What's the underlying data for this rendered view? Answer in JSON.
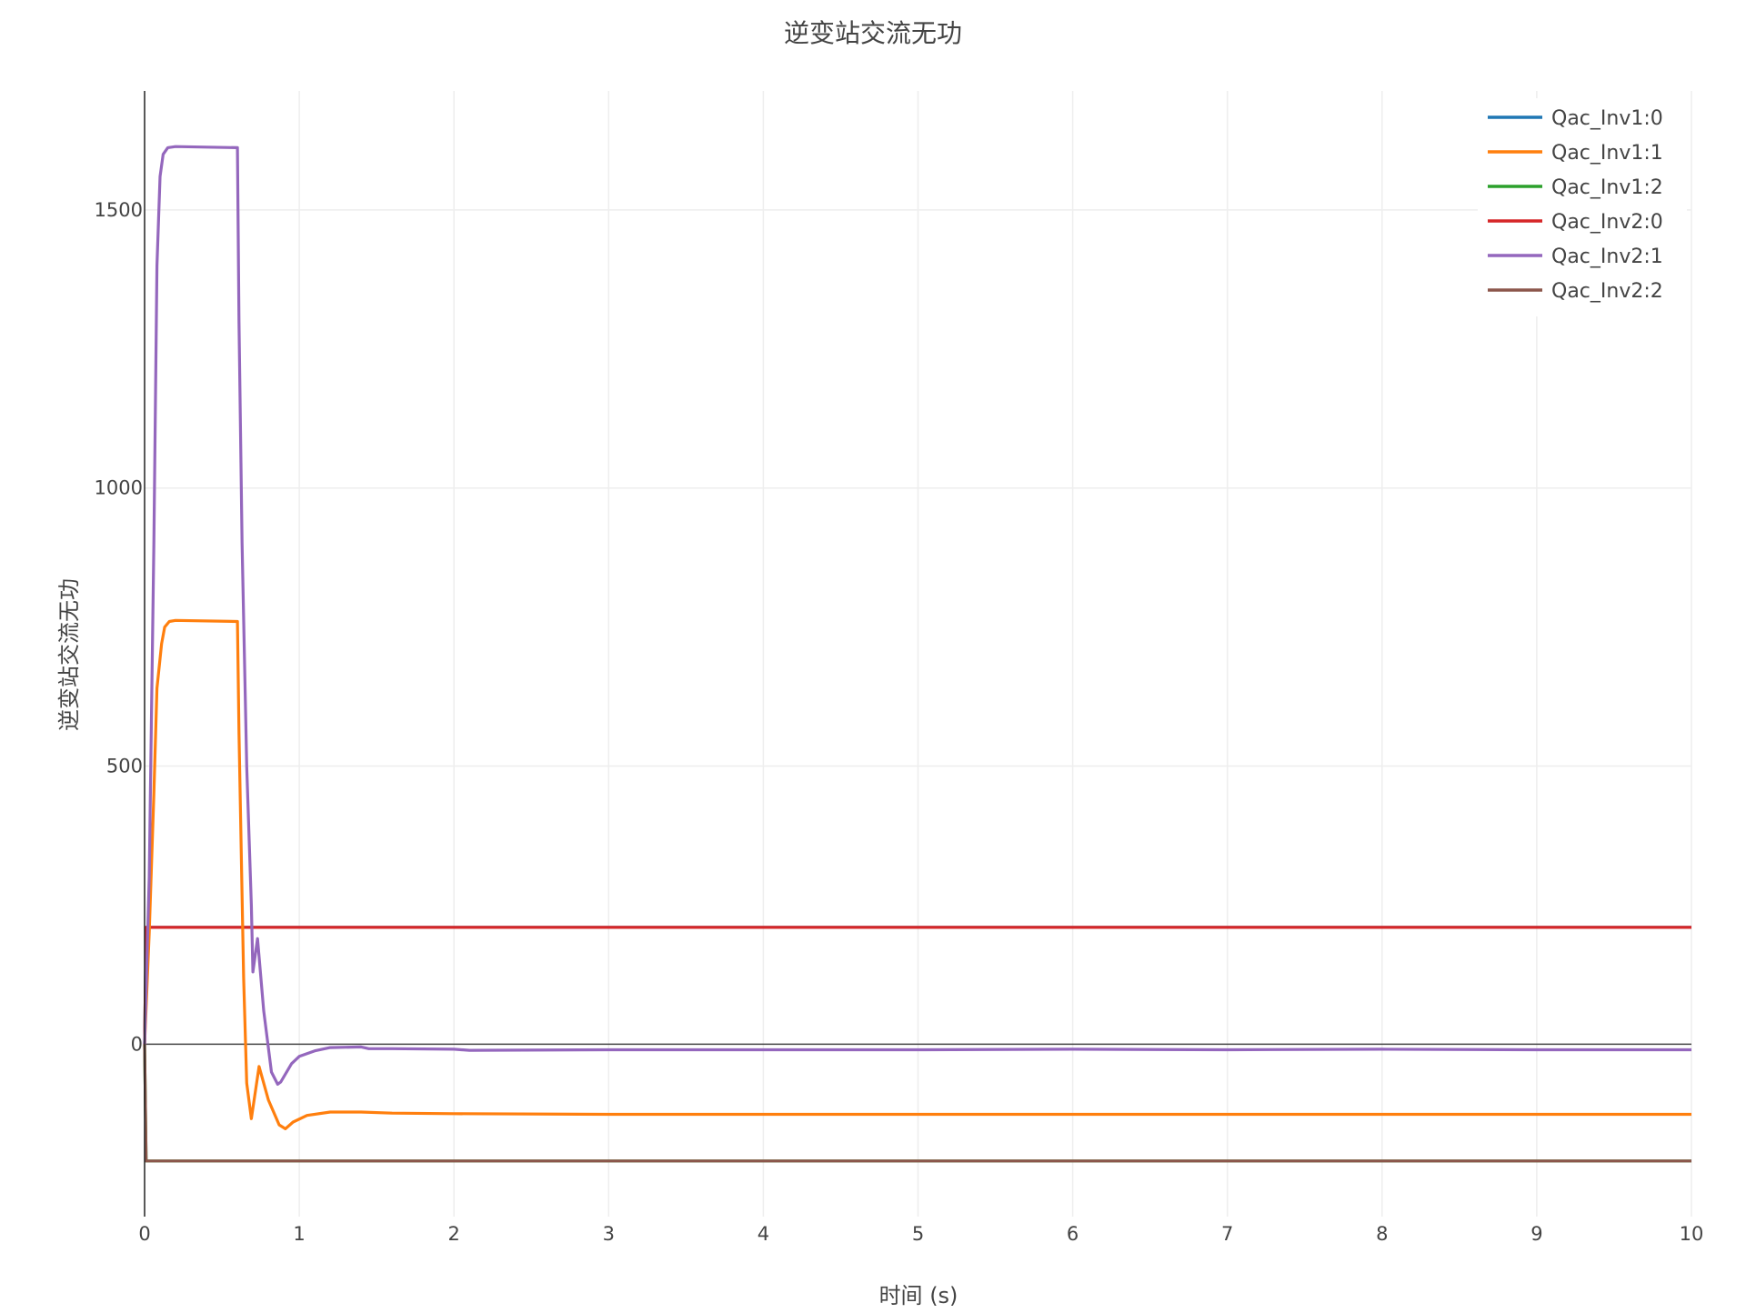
{
  "chart_data": {
    "type": "line",
    "title": "逆变站交流无功",
    "xlabel": "时间 (s)",
    "ylabel": "逆变站交流无功",
    "xlim": [
      0,
      10
    ],
    "ylim": [
      -310,
      1714
    ],
    "xticks": [
      0,
      1,
      2,
      3,
      4,
      5,
      6,
      7,
      8,
      9,
      10
    ],
    "yticks": [
      0,
      500,
      1000,
      1500
    ],
    "grid": true,
    "legend_position": "top-right",
    "series": [
      {
        "name": "Qac_Inv1:0",
        "color": "#1f77b4",
        "x": [
          0,
          0.01,
          10
        ],
        "y": [
          0,
          210,
          210
        ]
      },
      {
        "name": "Qac_Inv1:1",
        "color": "#ff7f0e",
        "x": [
          0,
          0.03,
          0.06,
          0.08,
          0.11,
          0.13,
          0.16,
          0.2,
          0.6,
          0.61,
          0.64,
          0.66,
          0.69,
          0.74,
          0.8,
          0.87,
          0.91,
          0.96,
          1.05,
          1.2,
          1.4,
          1.6,
          2.0,
          3,
          5,
          7,
          10
        ],
        "y": [
          0,
          200,
          450,
          640,
          720,
          750,
          760,
          762,
          760,
          560,
          120,
          -70,
          -134,
          -40,
          -100,
          -145,
          -152,
          -140,
          -128,
          -122,
          -122,
          -124,
          -125,
          -126,
          -126,
          -126,
          -126
        ]
      },
      {
        "name": "Qac_Inv1:2",
        "color": "#2ca02c",
        "x": [
          0,
          0.01,
          10
        ],
        "y": [
          0,
          -210,
          -210
        ]
      },
      {
        "name": "Qac_Inv2:0",
        "color": "#d62728",
        "x": [
          0,
          0.01,
          10
        ],
        "y": [
          0,
          210,
          210
        ]
      },
      {
        "name": "Qac_Inv2:1",
        "color": "#9467bd",
        "x": [
          0,
          0.03,
          0.06,
          0.08,
          0.1,
          0.12,
          0.15,
          0.2,
          0.6,
          0.61,
          0.63,
          0.66,
          0.69,
          0.7,
          0.73,
          0.77,
          0.82,
          0.86,
          0.88,
          0.95,
          1.0,
          1.1,
          1.2,
          1.4,
          1.45,
          1.6,
          2.0,
          2.1,
          3,
          4,
          5,
          6,
          7,
          8,
          9,
          10
        ],
        "y": [
          0,
          300,
          900,
          1400,
          1560,
          1600,
          1612,
          1614,
          1612,
          1300,
          900,
          500,
          250,
          130,
          190,
          60,
          -50,
          -72,
          -68,
          -35,
          -22,
          -12,
          -6,
          -5,
          -8,
          -8,
          -9,
          -11,
          -10,
          -10,
          -10,
          -9,
          -10,
          -9,
          -10,
          -10
        ]
      },
      {
        "name": "Qac_Inv2:2",
        "color": "#8c564b",
        "x": [
          0,
          0.01,
          10
        ],
        "y": [
          0,
          -210,
          -210
        ]
      }
    ]
  }
}
